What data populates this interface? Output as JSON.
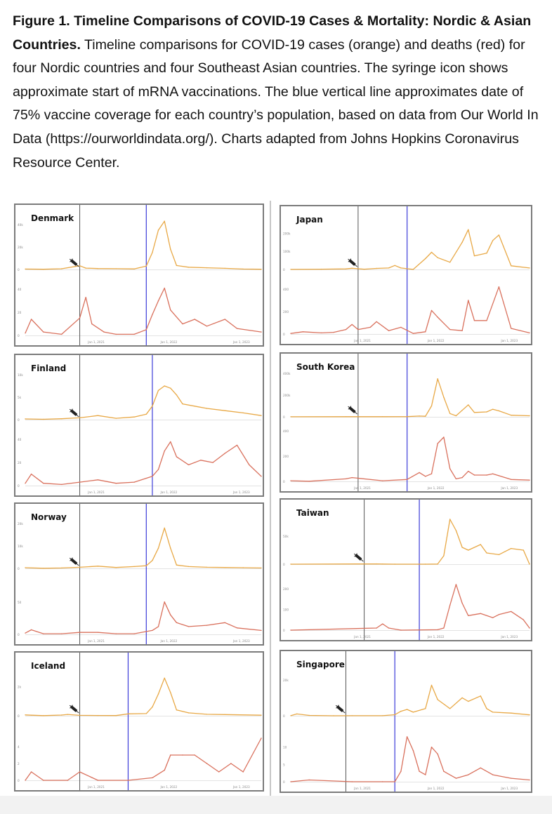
{
  "caption": {
    "label": "Figure 1.",
    "title": "Timeline Comparisons of COVID-19 Cases & Mortality: Nordic & Asian Countries.",
    "body": "Timeline comparisons for COVID-19 cases (orange) and deaths (red) for four Nordic countries and four Southeast Asian countries. The syringe icon shows approximate start of mRNA vaccinations. The blue vertical line approximates date of 75% vaccine coverage for each country’s population, based on data from Our World In Data (https://ourworldindata.org/). Charts adapted from Johns Hopkins Coronavirus Resource Center."
  },
  "colors": {
    "cases": "#e8a845",
    "deaths": "#d9705c",
    "vaccine_line": "#3b3bd8",
    "jan2021_line": "#555555",
    "grid": "#e3e3e3"
  },
  "chart_data": [
    {
      "type": "line",
      "title": "Denmark",
      "x_ticks": [
        "Jan 1, 2021",
        "Jan 1, 2022",
        "Jan 1, 2023"
      ],
      "cases_yticks": [
        "40k",
        "20k",
        "0"
      ],
      "cases_ylim": [
        0,
        40000
      ],
      "deaths_yticks": [
        "40",
        "20",
        "0"
      ],
      "deaths_ylim": [
        0,
        45
      ],
      "x_range": [
        "2020-03",
        "2023-06"
      ],
      "vaccination_start": "2020-12",
      "coverage_75pct": "2021-11",
      "series": [
        {
          "name": "Cases",
          "x": [
            "2020-03",
            "2020-06",
            "2020-09",
            "2020-12",
            "2021-01",
            "2021-03",
            "2021-06",
            "2021-09",
            "2021-11",
            "2021-12",
            "2022-01",
            "2022-02",
            "2022-03",
            "2022-04",
            "2022-06",
            "2022-09",
            "2022-12",
            "2023-03",
            "2023-06"
          ],
          "values": [
            400,
            200,
            600,
            3300,
            1200,
            800,
            700,
            500,
            3000,
            15000,
            35000,
            43000,
            18000,
            3500,
            2000,
            1500,
            1000,
            400,
            200
          ]
        },
        {
          "name": "Deaths",
          "x": [
            "2020-03",
            "2020-04",
            "2020-06",
            "2020-09",
            "2020-12",
            "2021-01",
            "2021-02",
            "2021-04",
            "2021-06",
            "2021-09",
            "2021-11",
            "2021-12",
            "2022-01",
            "2022-02",
            "2022-03",
            "2022-05",
            "2022-07",
            "2022-09",
            "2022-12",
            "2023-02",
            "2023-06"
          ],
          "values": [
            2,
            14,
            3,
            1,
            15,
            33,
            10,
            3,
            1,
            1,
            5,
            18,
            30,
            41,
            22,
            10,
            14,
            8,
            14,
            6,
            3
          ]
        }
      ]
    },
    {
      "type": "line",
      "title": "Finland",
      "x_ticks": [
        "Jan 1, 2021",
        "Jan 1, 2022",
        "Jan 1, 2023"
      ],
      "cases_yticks": [
        "10k",
        "5k",
        "0"
      ],
      "cases_ylim": [
        0,
        10000
      ],
      "deaths_yticks": [
        "40",
        "20",
        "0"
      ],
      "deaths_ylim": [
        0,
        45
      ],
      "x_range": [
        "2020-03",
        "2023-06"
      ],
      "vaccination_start": "2020-12",
      "coverage_75pct": "2021-12",
      "series": [
        {
          "name": "Cases",
          "x": [
            "2020-03",
            "2020-06",
            "2020-09",
            "2020-12",
            "2021-03",
            "2021-06",
            "2021-09",
            "2021-11",
            "2021-12",
            "2022-01",
            "2022-02",
            "2022-03",
            "2022-04",
            "2022-05",
            "2022-07",
            "2022-09",
            "2022-12",
            "2023-03",
            "2023-06"
          ],
          "values": [
            150,
            80,
            200,
            400,
            900,
            300,
            600,
            1200,
            3000,
            6500,
            7500,
            7000,
            5500,
            3500,
            3000,
            2500,
            2000,
            1500,
            900
          ]
        },
        {
          "name": "Deaths",
          "x": [
            "2020-03",
            "2020-04",
            "2020-06",
            "2020-09",
            "2020-12",
            "2021-03",
            "2021-06",
            "2021-09",
            "2021-12",
            "2022-01",
            "2022-02",
            "2022-03",
            "2022-04",
            "2022-06",
            "2022-08",
            "2022-10",
            "2022-12",
            "2023-02",
            "2023-04",
            "2023-06"
          ],
          "values": [
            2,
            10,
            2,
            1,
            3,
            5,
            2,
            3,
            8,
            14,
            30,
            38,
            25,
            18,
            22,
            20,
            28,
            35,
            18,
            8
          ]
        }
      ]
    },
    {
      "type": "line",
      "title": "Norway",
      "x_ticks": [
        "Jan 1, 2021",
        "Jan 1, 2022",
        "Jan 1, 2023"
      ],
      "cases_yticks": [
        "20k",
        "10k",
        "0"
      ],
      "cases_ylim": [
        0,
        20000
      ],
      "deaths_yticks": [
        "50",
        "0"
      ],
      "deaths_ylim": [
        0,
        80
      ],
      "x_range": [
        "2020-03",
        "2023-06"
      ],
      "vaccination_start": "2020-12",
      "coverage_75pct": "2021-11",
      "series": [
        {
          "name": "Cases",
          "x": [
            "2020-03",
            "2020-06",
            "2020-09",
            "2020-12",
            "2021-03",
            "2021-06",
            "2021-09",
            "2021-11",
            "2021-12",
            "2022-01",
            "2022-02",
            "2022-03",
            "2022-04",
            "2022-06",
            "2022-09",
            "2022-12",
            "2023-03",
            "2023-06"
          ],
          "values": [
            300,
            50,
            200,
            500,
            1000,
            400,
            800,
            1200,
            3500,
            9000,
            18000,
            9000,
            1500,
            800,
            500,
            400,
            300,
            200
          ]
        },
        {
          "name": "Deaths",
          "x": [
            "2020-03",
            "2020-04",
            "2020-06",
            "2020-09",
            "2020-12",
            "2021-03",
            "2021-06",
            "2021-09",
            "2021-12",
            "2022-01",
            "2022-02",
            "2022-03",
            "2022-04",
            "2022-06",
            "2022-09",
            "2022-12",
            "2023-02",
            "2023-06"
          ],
          "values": [
            2,
            7,
            1,
            1,
            3,
            3,
            1,
            1,
            6,
            12,
            50,
            30,
            18,
            12,
            14,
            18,
            10,
            6
          ]
        }
      ]
    },
    {
      "type": "line",
      "title": "Iceland",
      "x_ticks": [
        "Jan 1, 2021",
        "Jan 1, 2022",
        "Jan 1, 2023"
      ],
      "cases_yticks": [
        "2k",
        "0"
      ],
      "cases_ylim": [
        0,
        3000
      ],
      "deaths_yticks": [
        "4",
        "2",
        "0"
      ],
      "deaths_ylim": [
        0,
        6
      ],
      "x_range": [
        "2020-03",
        "2023-06"
      ],
      "vaccination_start": "2020-12",
      "coverage_75pct": "2021-08",
      "series": [
        {
          "name": "Cases",
          "x": [
            "2020-03",
            "2020-04",
            "2020-06",
            "2020-09",
            "2020-10",
            "2020-12",
            "2021-03",
            "2021-06",
            "2021-08",
            "2021-11",
            "2021-12",
            "2022-01",
            "2022-02",
            "2022-03",
            "2022-04",
            "2022-06",
            "2022-09",
            "2022-12",
            "2023-06"
          ],
          "values": [
            60,
            40,
            10,
            50,
            90,
            30,
            20,
            15,
            130,
            150,
            600,
            1500,
            2600,
            1600,
            400,
            200,
            100,
            80,
            40
          ]
        },
        {
          "name": "Deaths",
          "x": [
            "2020-03",
            "2020-04",
            "2020-06",
            "2020-10",
            "2020-12",
            "2021-03",
            "2021-08",
            "2021-12",
            "2022-02",
            "2022-03",
            "2022-05",
            "2022-07",
            "2022-09",
            "2022-11",
            "2023-01",
            "2023-03",
            "2023-06"
          ],
          "values": [
            0,
            1,
            0,
            0,
            1,
            0,
            0,
            0.3,
            1.2,
            3,
            3,
            3,
            2,
            1,
            2,
            1,
            5
          ]
        }
      ]
    },
    {
      "type": "line",
      "title": "Japan",
      "x_ticks": [
        "Jan 1, 2021",
        "Jan 1, 2022",
        "Jan 1, 2023"
      ],
      "cases_yticks": [
        "200k",
        "100k",
        "0"
      ],
      "cases_ylim": [
        0,
        240000
      ],
      "deaths_yticks": [
        "400",
        "200",
        "0"
      ],
      "deaths_ylim": [
        0,
        450
      ],
      "x_range": [
        "2020-03",
        "2023-06"
      ],
      "vaccination_start": "2021-02",
      "coverage_75pct": "2021-10",
      "series": [
        {
          "name": "Cases",
          "x": [
            "2020-03",
            "2020-08",
            "2020-12",
            "2021-01",
            "2021-03",
            "2021-05",
            "2021-07",
            "2021-08",
            "2021-09",
            "2021-11",
            "2022-01",
            "2022-02",
            "2022-03",
            "2022-05",
            "2022-07",
            "2022-08",
            "2022-09",
            "2022-11",
            "2022-12",
            "2023-01",
            "2023-03",
            "2023-06"
          ],
          "values": [
            500,
            1500,
            3000,
            6500,
            1500,
            6000,
            8000,
            22000,
            8000,
            500,
            60000,
            95000,
            65000,
            40000,
            150000,
            220000,
            75000,
            90000,
            160000,
            190000,
            20000,
            8000
          ]
        },
        {
          "name": "Deaths",
          "x": [
            "2020-03",
            "2020-05",
            "2020-08",
            "2020-10",
            "2020-12",
            "2021-01",
            "2021-02",
            "2021-04",
            "2021-05",
            "2021-07",
            "2021-09",
            "2021-11",
            "2022-01",
            "2022-02",
            "2022-03",
            "2022-05",
            "2022-07",
            "2022-08",
            "2022-09",
            "2022-11",
            "2023-01",
            "2023-03",
            "2023-06"
          ],
          "values": [
            5,
            20,
            10,
            15,
            40,
            85,
            40,
            60,
            110,
            30,
            60,
            5,
            20,
            210,
            150,
            40,
            30,
            300,
            120,
            120,
            420,
            50,
            10
          ]
        }
      ]
    },
    {
      "type": "line",
      "title": "South Korea",
      "x_ticks": [
        "Jan 1, 2021",
        "Jan 1, 2022",
        "Jan 1, 2023"
      ],
      "cases_yticks": [
        "400k",
        "200k",
        "0"
      ],
      "cases_ylim": [
        0,
        400000
      ],
      "deaths_yticks": [
        "400",
        "200",
        "0"
      ],
      "deaths_ylim": [
        0,
        400
      ],
      "x_range": [
        "2020-03",
        "2023-06"
      ],
      "vaccination_start": "2021-02",
      "coverage_75pct": "2021-10",
      "series": [
        {
          "name": "Cases",
          "x": [
            "2020-03",
            "2020-12",
            "2021-06",
            "2021-10",
            "2021-12",
            "2022-01",
            "2022-02",
            "2022-03",
            "2022-04",
            "2022-05",
            "2022-06",
            "2022-07",
            "2022-08",
            "2022-09",
            "2022-11",
            "2022-12",
            "2023-01",
            "2023-03",
            "2023-06"
          ],
          "values": [
            500,
            1000,
            1500,
            2000,
            7000,
            5000,
            100000,
            350000,
            180000,
            30000,
            10000,
            60000,
            110000,
            40000,
            45000,
            70000,
            55000,
            15000,
            10000
          ]
        },
        {
          "name": "Deaths",
          "x": [
            "2020-03",
            "2020-06",
            "2020-12",
            "2021-01",
            "2021-06",
            "2021-10",
            "2021-12",
            "2022-01",
            "2022-02",
            "2022-03",
            "2022-04",
            "2022-05",
            "2022-06",
            "2022-07",
            "2022-08",
            "2022-09",
            "2022-11",
            "2022-12",
            "2023-01",
            "2023-03",
            "2023-06"
          ],
          "values": [
            5,
            1,
            20,
            30,
            5,
            15,
            70,
            40,
            60,
            300,
            350,
            100,
            20,
            30,
            80,
            50,
            50,
            60,
            45,
            15,
            10
          ]
        }
      ]
    },
    {
      "type": "line",
      "title": "Taiwan",
      "x_ticks": [
        "Jan 1, 2021",
        "Jan 1, 2022",
        "Jan 1, 2023"
      ],
      "cases_yticks": [
        "50k",
        "0"
      ],
      "cases_ylim": [
        0,
        80000
      ],
      "deaths_yticks": [
        "200",
        "100",
        "0"
      ],
      "deaths_ylim": [
        0,
        250
      ],
      "x_range": [
        "2020-03",
        "2023-06"
      ],
      "vaccination_start": "2021-03",
      "coverage_75pct": "2021-12",
      "series": [
        {
          "name": "Cases",
          "x": [
            "2020-03",
            "2021-05",
            "2021-06",
            "2021-08",
            "2022-01",
            "2022-03",
            "2022-04",
            "2022-05",
            "2022-06",
            "2022-07",
            "2022-08",
            "2022-10",
            "2022-11",
            "2023-01",
            "2023-03",
            "2023-05",
            "2023-06"
          ],
          "values": [
            0,
            500,
            300,
            50,
            50,
            200,
            15000,
            80000,
            60000,
            30000,
            25000,
            35000,
            20000,
            17000,
            28000,
            25000,
            0
          ]
        },
        {
          "name": "Deaths",
          "x": [
            "2020-03",
            "2021-05",
            "2021-06",
            "2021-07",
            "2021-09",
            "2022-03",
            "2022-04",
            "2022-05",
            "2022-06",
            "2022-07",
            "2022-08",
            "2022-10",
            "2022-12",
            "2023-01",
            "2023-03",
            "2023-05",
            "2023-06"
          ],
          "values": [
            0,
            10,
            30,
            10,
            0,
            2,
            10,
            120,
            220,
            130,
            70,
            80,
            60,
            75,
            90,
            50,
            10
          ]
        }
      ]
    },
    {
      "type": "line",
      "title": "Singapore",
      "x_ticks": [
        "Jan 1, 2021",
        "Jan 1, 2022",
        "Jan 1, 2023"
      ],
      "cases_yticks": [
        "20k",
        "0"
      ],
      "cases_ylim": [
        0,
        25000
      ],
      "deaths_yticks": [
        "10",
        "5",
        "0"
      ],
      "deaths_ylim": [
        0,
        15
      ],
      "x_range": [
        "2020-03",
        "2023-06"
      ],
      "vaccination_start": "2020-12",
      "coverage_75pct": "2021-08",
      "series": [
        {
          "name": "Cases",
          "x": [
            "2020-03",
            "2020-04",
            "2020-06",
            "2020-10",
            "2021-01",
            "2021-06",
            "2021-08",
            "2021-09",
            "2021-10",
            "2021-11",
            "2022-01",
            "2022-02",
            "2022-03",
            "2022-05",
            "2022-07",
            "2022-08",
            "2022-10",
            "2022-11",
            "2022-12",
            "2023-03",
            "2023-06"
          ],
          "values": [
            50,
            1000,
            200,
            10,
            20,
            30,
            600,
            2500,
            3500,
            2000,
            4000,
            17000,
            9000,
            4000,
            10000,
            8000,
            11000,
            4000,
            2000,
            1500,
            500
          ]
        },
        {
          "name": "Deaths",
          "x": [
            "2020-03",
            "2020-06",
            "2021-01",
            "2021-06",
            "2021-08",
            "2021-09",
            "2021-10",
            "2021-11",
            "2021-12",
            "2022-01",
            "2022-02",
            "2022-03",
            "2022-04",
            "2022-06",
            "2022-08",
            "2022-10",
            "2022-12",
            "2023-03",
            "2023-06"
          ],
          "values": [
            0,
            0.5,
            0,
            0,
            0,
            3,
            13,
            9,
            3,
            2,
            10,
            8,
            3,
            1,
            2,
            4,
            2,
            1,
            0.5
          ]
        }
      ]
    }
  ]
}
